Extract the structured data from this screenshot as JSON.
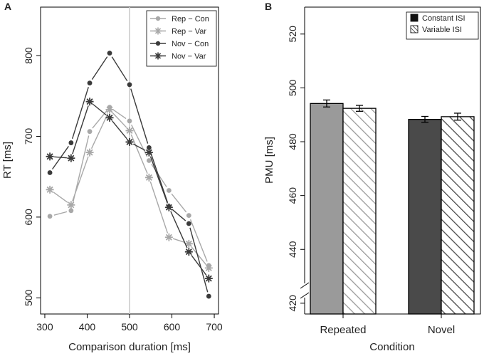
{
  "chart_data": [
    {
      "panel_label": "A",
      "type": "line",
      "xlabel": "Comparison duration [ms]",
      "ylabel": "RT [ms]",
      "xlim": [
        290,
        710
      ],
      "ylim": [
        480,
        860
      ],
      "xticks": [
        300,
        400,
        500,
        600,
        700
      ],
      "yticks": [
        500,
        600,
        700,
        800
      ],
      "reference_line_x": 500,
      "x": [
        312,
        362,
        406,
        453,
        500,
        546,
        593,
        640,
        687
      ],
      "series": [
        {
          "name": "Rep − Con",
          "values": [
            601,
            608,
            706,
            736,
            719,
            670,
            633,
            602,
            540
          ],
          "color": "#a8a8a8",
          "marker": "dot"
        },
        {
          "name": "Rep − Var",
          "values": [
            634,
            615,
            680,
            733,
            707,
            649,
            575,
            567,
            537
          ],
          "color": "#a8a8a8",
          "marker": "star"
        },
        {
          "name": "Nov − Con",
          "values": [
            655,
            692,
            766,
            803,
            764,
            686,
            613,
            592,
            502
          ],
          "color": "#3a3a3a",
          "marker": "dot"
        },
        {
          "name": "Nov − Var",
          "values": [
            675,
            673,
            743,
            723,
            693,
            680,
            612,
            557,
            524
          ],
          "color": "#3a3a3a",
          "marker": "star"
        }
      ]
    },
    {
      "panel_label": "B",
      "type": "bar",
      "xlabel": "Condition",
      "ylabel": "PMU [ms]",
      "ylim": [
        416,
        530
      ],
      "yticks": [
        420,
        440,
        460,
        480,
        500,
        520
      ],
      "categories": [
        "Repeated",
        "Novel"
      ],
      "series": [
        {
          "name": "Constant ISI",
          "values": [
            494.2,
            488.3
          ],
          "errors": [
            1.3,
            1.1
          ],
          "colors": [
            "#9a9a9a",
            "#4a4a4a"
          ],
          "pattern": "solid"
        },
        {
          "name": "Variable ISI",
          "values": [
            492.4,
            489.3
          ],
          "errors": [
            1.1,
            1.3
          ],
          "colors": [
            "#9a9a9a",
            "#4a4a4a"
          ],
          "pattern": "hatched"
        }
      ]
    }
  ]
}
